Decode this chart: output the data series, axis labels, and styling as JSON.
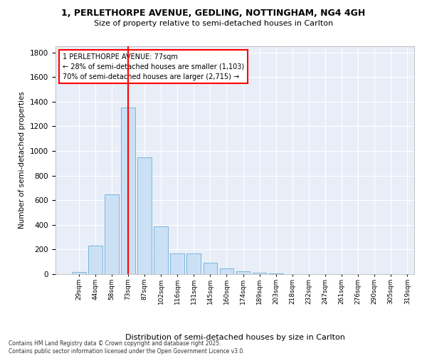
{
  "title1": "1, PERLETHORPE AVENUE, GEDLING, NOTTINGHAM, NG4 4GH",
  "title2": "Size of property relative to semi-detached houses in Carlton",
  "xlabel": "Distribution of semi-detached houses by size in Carlton",
  "ylabel": "Number of semi-detached properties",
  "bins": [
    "29sqm",
    "44sqm",
    "58sqm",
    "73sqm",
    "87sqm",
    "102sqm",
    "116sqm",
    "131sqm",
    "145sqm",
    "160sqm",
    "174sqm",
    "189sqm",
    "203sqm",
    "218sqm",
    "232sqm",
    "247sqm",
    "261sqm",
    "276sqm",
    "290sqm",
    "305sqm",
    "319sqm"
  ],
  "values": [
    20,
    230,
    645,
    1350,
    950,
    390,
    165,
    165,
    90,
    45,
    25,
    10,
    5,
    0,
    0,
    0,
    0,
    0,
    0,
    0
  ],
  "bar_color": "#cce0f5",
  "bar_edge_color": "#6aaed6",
  "vline_x_index": 3,
  "vline_color": "red",
  "annotation_text": "1 PERLETHORPE AVENUE: 77sqm\n← 28% of semi-detached houses are smaller (1,103)\n70% of semi-detached houses are larger (2,715) →",
  "ylim": [
    0,
    1850
  ],
  "yticks": [
    0,
    200,
    400,
    600,
    800,
    1000,
    1200,
    1400,
    1600,
    1800
  ],
  "plot_bg_color": "#e8eef8",
  "footer": "Contains HM Land Registry data © Crown copyright and database right 2025.\nContains public sector information licensed under the Open Government Licence v3.0.",
  "annotation_box_color": "white",
  "annotation_box_edge": "red"
}
